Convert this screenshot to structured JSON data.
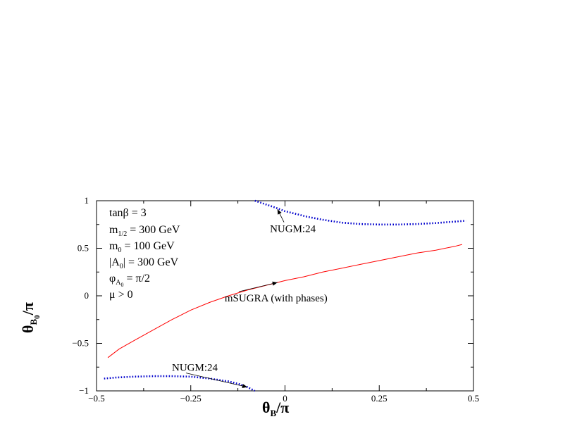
{
  "chart_data": {
    "type": "line",
    "xlim": [
      -0.5,
      0.5
    ],
    "ylim": [
      -1,
      1
    ],
    "xticks": [
      -0.5,
      -0.25,
      0,
      0.25,
      0.5
    ],
    "xtick_labels": [
      "−0.5",
      "−0.25",
      "0",
      "0.25",
      "0.5"
    ],
    "yticks": [
      1,
      0.5,
      0,
      -0.5,
      -1
    ],
    "ytick_labels": [
      "1",
      "0.5",
      "0",
      "−0.5",
      "−1"
    ],
    "xlabel_main": "θ",
    "xlabel_sub": "B",
    "xlabel_tail": "/π",
    "ylabel_main": "θ",
    "ylabel_sub": "B",
    "ylabel_subsub": "0",
    "ylabel_tail": "/π",
    "grid": false,
    "params": {
      "tanb": "tanβ = 3",
      "m12_main": "m",
      "m12_sub": "1/2",
      "m12_tail": " = 300 GeV",
      "m0_main": "m",
      "m0_sub": "0",
      "m0_tail": " = 100 GeV",
      "a0_main": "|A",
      "a0_sub": "0",
      "a0_tail": "| = 300 GeV",
      "phi_main": "φ",
      "phi_sub": "A",
      "phi_subsub": "0",
      "phi_tail": " = π/2",
      "mu": "μ > 0"
    },
    "series": [
      {
        "name": "mSUGRA (with phases)",
        "color": "#ff0000",
        "style": "solid",
        "x": [
          -0.47,
          -0.44,
          -0.4,
          -0.35,
          -0.3,
          -0.25,
          -0.2,
          -0.15,
          -0.1,
          -0.05,
          0.0,
          0.05,
          0.1,
          0.15,
          0.2,
          0.25,
          0.3,
          0.35,
          0.4,
          0.45,
          0.47
        ],
        "y": [
          -0.65,
          -0.56,
          -0.47,
          -0.36,
          -0.25,
          -0.15,
          -0.07,
          0.0,
          0.06,
          0.11,
          0.16,
          0.2,
          0.25,
          0.29,
          0.33,
          0.37,
          0.41,
          0.45,
          0.48,
          0.52,
          0.54
        ]
      },
      {
        "name": "NUGM:24",
        "color": "#0000cc",
        "style": "dotted",
        "x": [
          -0.08,
          -0.05,
          -0.02,
          0.0,
          0.03,
          0.06,
          0.1,
          0.15,
          0.2,
          0.25,
          0.3,
          0.35,
          0.4,
          0.45,
          0.48
        ],
        "y": [
          1.0,
          0.96,
          0.92,
          0.89,
          0.86,
          0.83,
          0.8,
          0.77,
          0.755,
          0.75,
          0.75,
          0.755,
          0.765,
          0.78,
          0.79
        ]
      },
      {
        "name": "NUGM:24",
        "color": "#0000cc",
        "style": "dotted",
        "x": [
          -0.48,
          -0.45,
          -0.4,
          -0.35,
          -0.3,
          -0.25,
          -0.2,
          -0.15,
          -0.12,
          -0.1,
          -0.08
        ],
        "y": [
          -0.87,
          -0.86,
          -0.85,
          -0.845,
          -0.845,
          -0.85,
          -0.87,
          -0.9,
          -0.93,
          -0.96,
          -1.0
        ]
      }
    ],
    "annotations": [
      {
        "text": "NUGM:24",
        "series": 1,
        "x": -0.04,
        "y": 0.67,
        "arrow_to": [
          -0.02,
          0.91
        ]
      },
      {
        "text": "mSUGRA (with phases)",
        "series": 0,
        "x": -0.16,
        "y": -0.06,
        "arrow_to": [
          -0.02,
          0.14
        ]
      },
      {
        "text": "NUGM:24",
        "series": 2,
        "x": -0.3,
        "y": -0.79,
        "arrow_to": [
          -0.1,
          -0.96
        ]
      }
    ]
  }
}
